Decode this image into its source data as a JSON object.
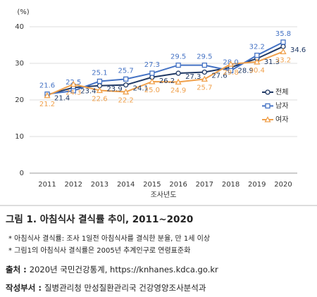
{
  "chart_data": {
    "type": "line",
    "y_unit": "(%)",
    "x_label": "조사년도",
    "categories": [
      "2011",
      "2012",
      "2013",
      "2014",
      "2015",
      "2016",
      "2017",
      "2018",
      "2019",
      "2020"
    ],
    "series": [
      {
        "name": "전체",
        "color": "#1f3864",
        "marker": "circle",
        "values": [
          21.4,
          23.4,
          23.9,
          24.1,
          26.2,
          27.3,
          27.6,
          28.9,
          31.3,
          34.6
        ],
        "value_labels": [
          "21.4",
          "23.4",
          "23.9",
          "24.1",
          "26.2",
          "27.3",
          "27.6",
          "28.9",
          "31.3",
          "34.6"
        ]
      },
      {
        "name": "남자",
        "color": "#4472c4",
        "marker": "square",
        "values": [
          21.6,
          22.5,
          25.1,
          25.7,
          27.3,
          29.5,
          29.5,
          28.0,
          32.2,
          35.8
        ],
        "value_labels": [
          "21.6",
          "22.5",
          "25.1",
          "25.7",
          "27.3",
          "29.5",
          "29.5",
          "28.0",
          "32.2",
          "35.8"
        ]
      },
      {
        "name": "여자",
        "color": "#f0a04b",
        "marker": "triangle",
        "values": [
          21.2,
          24.3,
          22.6,
          22.2,
          25.0,
          24.9,
          25.7,
          29.8,
          30.4,
          33.2
        ],
        "value_labels": [
          "21.2",
          "24.3",
          "22.6",
          "22.2",
          "25.0",
          "24.9",
          "25.7",
          "29.8",
          "30.4",
          "33.2"
        ]
      }
    ],
    "ylim": [
      0,
      40
    ],
    "yticks": [
      0,
      10,
      20,
      30,
      40
    ],
    "grid": true,
    "legend": "right"
  },
  "caption": {
    "title": "그림 1. 아침식사 결식률 추이, 2011~2020",
    "notes": [
      "* 아침식사 결식률: 조사 1일전 아침식사를 결식한 분율, 만 1세 이상",
      "* 그림1의 아침식사 결식률은 2005년 추계인구로 연령표준화"
    ],
    "source_label": "출처 :",
    "source": "2020년 국민건강통계, https://knhanes.kdca.go.kr",
    "dept_label": "작성부서 :",
    "dept": "질병관리청 만성질환관리국 건강영양조사분석과"
  }
}
